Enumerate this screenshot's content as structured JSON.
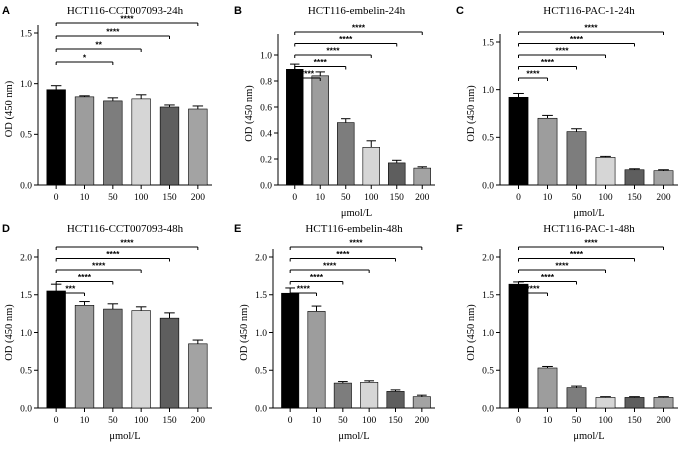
{
  "figure": {
    "bar_colors": [
      "#000000",
      "#9d9d9d",
      "#7d7d7d",
      "#d6d6d6",
      "#5e5e5e",
      "#a3a3a3"
    ]
  },
  "chart_data": [
    {
      "panel": "A",
      "type": "bar",
      "title": "HCT116-CCT007093-24h",
      "xlabel": "",
      "ylabel": "OD (450 nm)",
      "categories": [
        "0",
        "10",
        "50",
        "100",
        "150",
        "200"
      ],
      "values": [
        0.94,
        0.87,
        0.83,
        0.85,
        0.77,
        0.75
      ],
      "errors": [
        0.04,
        0.01,
        0.03,
        0.04,
        0.02,
        0.03
      ],
      "ylim": [
        0,
        1.5
      ],
      "yticks": [
        "0.0",
        "0.5",
        "1.0",
        "1.5"
      ],
      "significance": [
        {
          "from": "0",
          "to": "50",
          "label": "*"
        },
        {
          "from": "0",
          "to": "100",
          "label": "**"
        },
        {
          "from": "0",
          "to": "150",
          "label": "****"
        },
        {
          "from": "0",
          "to": "200",
          "label": "****"
        }
      ]
    },
    {
      "panel": "B",
      "type": "bar",
      "title": "HCT116-embelin-24h",
      "xlabel": "μmol/L",
      "ylabel": "OD (450 nm)",
      "categories": [
        "0",
        "10",
        "50",
        "100",
        "150",
        "200"
      ],
      "values": [
        0.89,
        0.84,
        0.48,
        0.29,
        0.17,
        0.13
      ],
      "errors": [
        0.04,
        0.03,
        0.03,
        0.05,
        0.02,
        0.01
      ],
      "ylim": [
        0,
        1.1
      ],
      "yticks": [
        "0.0",
        "0.2",
        "0.4",
        "0.6",
        "0.8",
        "1.0"
      ],
      "significance": [
        {
          "from": "0",
          "to": "10",
          "label": "****"
        },
        {
          "from": "0",
          "to": "50",
          "label": "****"
        },
        {
          "from": "0",
          "to": "100",
          "label": "****"
        },
        {
          "from": "0",
          "to": "150",
          "label": "****"
        },
        {
          "from": "0",
          "to": "200",
          "label": "****"
        }
      ]
    },
    {
      "panel": "C",
      "type": "bar",
      "title": "HCT116-PAC-1-24h",
      "xlabel": "μmol/L",
      "ylabel": "OD (450 nm)",
      "categories": [
        "0",
        "10",
        "50",
        "100",
        "150",
        "200"
      ],
      "values": [
        0.92,
        0.7,
        0.56,
        0.29,
        0.16,
        0.15
      ],
      "errors": [
        0.04,
        0.03,
        0.03,
        0.01,
        0.01,
        0.01
      ],
      "ylim": [
        0,
        1.5
      ],
      "yticks": [
        "0.0",
        "0.5",
        "1.0",
        "1.5"
      ],
      "significance": [
        {
          "from": "0",
          "to": "10",
          "label": "****"
        },
        {
          "from": "0",
          "to": "50",
          "label": "****"
        },
        {
          "from": "0",
          "to": "100",
          "label": "****"
        },
        {
          "from": "0",
          "to": "150",
          "label": "****"
        },
        {
          "from": "0",
          "to": "200",
          "label": "****"
        }
      ]
    },
    {
      "panel": "D",
      "type": "bar",
      "title": "HCT116-CCT007093-48h",
      "xlabel": "μmol/L",
      "ylabel": "OD (450 nm)",
      "categories": [
        "0",
        "10",
        "50",
        "100",
        "150",
        "200"
      ],
      "values": [
        1.55,
        1.36,
        1.31,
        1.29,
        1.19,
        0.85
      ],
      "errors": [
        0.09,
        0.05,
        0.07,
        0.05,
        0.07,
        0.05
      ],
      "ylim": [
        0,
        2.0
      ],
      "yticks": [
        "0.0",
        "0.5",
        "1.0",
        "1.5",
        "2.0"
      ],
      "significance": [
        {
          "from": "0",
          "to": "10",
          "label": "***"
        },
        {
          "from": "0",
          "to": "50",
          "label": "****"
        },
        {
          "from": "0",
          "to": "100",
          "label": "****"
        },
        {
          "from": "0",
          "to": "150",
          "label": "****"
        },
        {
          "from": "0",
          "to": "200",
          "label": "****"
        }
      ]
    },
    {
      "panel": "E",
      "type": "bar",
      "title": "HCT116-embelin-48h",
      "xlabel": "μmol/L",
      "ylabel": "OD (450 nm)",
      "categories": [
        "0",
        "10",
        "50",
        "100",
        "150",
        "200"
      ],
      "values": [
        1.52,
        1.28,
        0.33,
        0.34,
        0.22,
        0.15
      ],
      "errors": [
        0.07,
        0.07,
        0.02,
        0.02,
        0.02,
        0.02
      ],
      "ylim": [
        0,
        2.0
      ],
      "yticks": [
        "0.0",
        "0.5",
        "1.0",
        "1.5",
        "2.0"
      ],
      "significance": [
        {
          "from": "0",
          "to": "10",
          "label": "****"
        },
        {
          "from": "0",
          "to": "50",
          "label": "****"
        },
        {
          "from": "0",
          "to": "100",
          "label": "****"
        },
        {
          "from": "0",
          "to": "150",
          "label": "****"
        },
        {
          "from": "0",
          "to": "200",
          "label": "****"
        }
      ]
    },
    {
      "panel": "F",
      "type": "bar",
      "title": "HCT116-PAC-1-48h",
      "xlabel": "μmol/L",
      "ylabel": "OD (450 nm)",
      "categories": [
        "0",
        "10",
        "50",
        "100",
        "150",
        "200"
      ],
      "values": [
        1.64,
        0.53,
        0.27,
        0.14,
        0.14,
        0.14
      ],
      "errors": [
        0.03,
        0.02,
        0.02,
        0.01,
        0.01,
        0.01
      ],
      "ylim": [
        0,
        2.0
      ],
      "yticks": [
        "0.0",
        "0.5",
        "1.0",
        "1.5",
        "2.0"
      ],
      "significance": [
        {
          "from": "0",
          "to": "10",
          "label": "****"
        },
        {
          "from": "0",
          "to": "50",
          "label": "****"
        },
        {
          "from": "0",
          "to": "100",
          "label": "****"
        },
        {
          "from": "0",
          "to": "150",
          "label": "****"
        },
        {
          "from": "0",
          "to": "200",
          "label": "****"
        }
      ]
    }
  ]
}
